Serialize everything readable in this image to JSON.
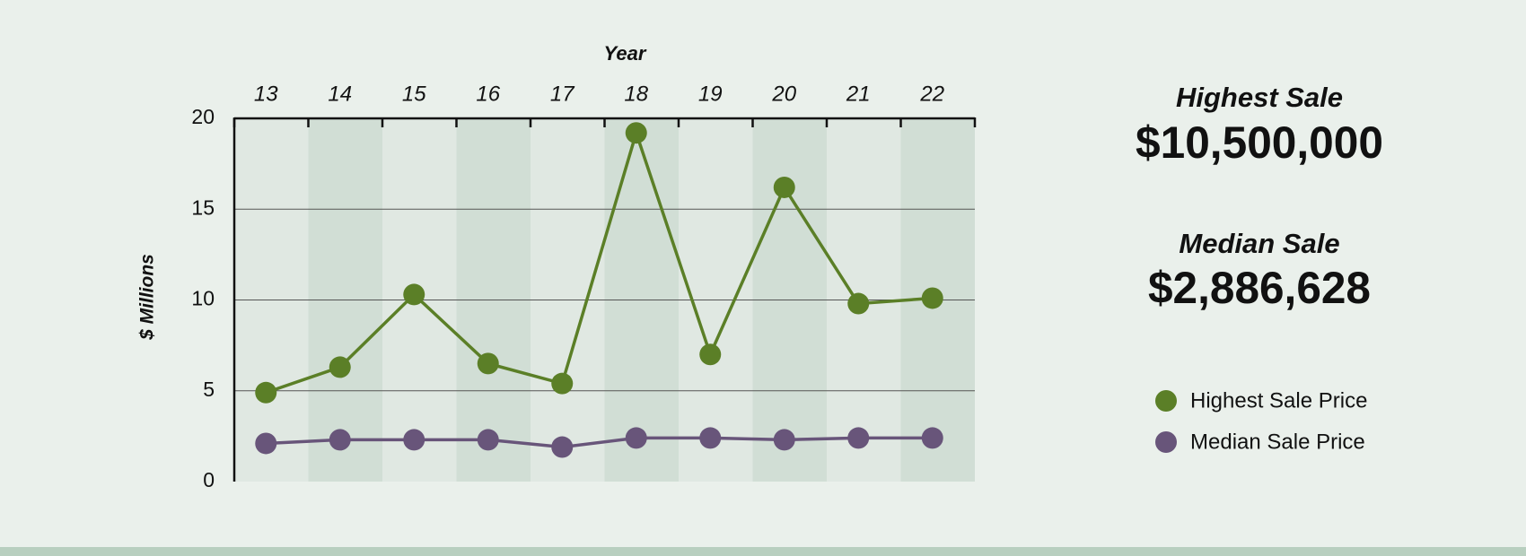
{
  "chart_data": {
    "type": "line",
    "xlabel": "Year",
    "ylabel": "$ Millions",
    "categories": [
      "13",
      "14",
      "15",
      "16",
      "17",
      "18",
      "19",
      "20",
      "21",
      "22"
    ],
    "series": [
      {
        "name": "Highest Sale Price",
        "color": "#5b7f27",
        "values": [
          4.9,
          6.3,
          10.3,
          6.5,
          5.4,
          19.2,
          7.0,
          16.2,
          9.8,
          10.1
        ]
      },
      {
        "name": "Median Sale Price",
        "color": "#68557a",
        "values": [
          2.1,
          2.3,
          2.3,
          2.3,
          1.9,
          2.4,
          2.4,
          2.3,
          2.4,
          2.4
        ]
      }
    ],
    "ylim": [
      0,
      20
    ],
    "yticks": [
      0,
      5,
      10,
      15,
      20
    ],
    "grid": true,
    "legend": "right"
  },
  "stats": [
    {
      "label": "Highest Sale",
      "value": "$10,500,000"
    },
    {
      "label": "Median Sale",
      "value": "$2,886,628"
    }
  ]
}
